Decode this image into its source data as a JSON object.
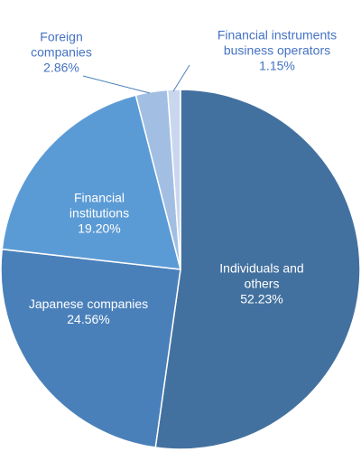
{
  "chart_data": {
    "type": "pie",
    "categories": [
      "Individuals and others",
      "Japanese companies",
      "Financial institutions",
      "Foreign companies",
      "Financial instruments business operators"
    ],
    "values": [
      52.23,
      24.56,
      19.2,
      2.86,
      1.15
    ],
    "value_labels": [
      "52.23%",
      "24.56%",
      "19.20%",
      "2.86%",
      "1.15%"
    ],
    "colors": [
      "#43719f",
      "#4a80ba",
      "#5b9bd5",
      "#a2bfe3",
      "#c9d7ee"
    ]
  }
}
